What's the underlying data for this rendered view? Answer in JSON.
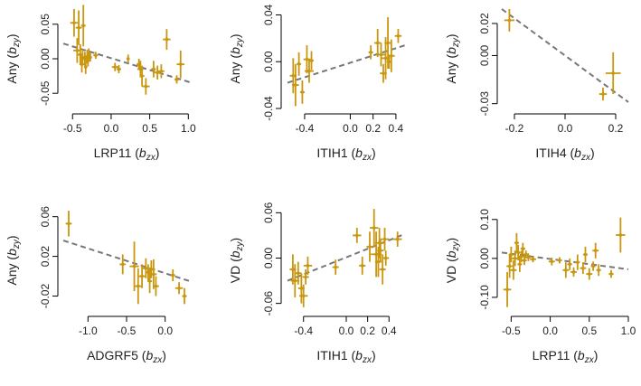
{
  "colors": {
    "point": "#C9970F",
    "fit": "#777777",
    "axis": "#000000"
  },
  "chart_data": [
    {
      "type": "scatter",
      "xlabel": {
        "gene": "LRP11",
        "sym": "b",
        "sub": "zx"
      },
      "ylabel": {
        "pre": "Any",
        "sym": "b",
        "sub": "zy"
      },
      "xlim": [
        -0.62,
        1.02
      ],
      "ylim": [
        -0.072,
        0.072
      ],
      "xticks": [
        -0.5,
        0.0,
        0.5,
        1.0
      ],
      "xtick_labels": [
        "-0.5",
        "0.0",
        "0.5",
        "1.0"
      ],
      "yticks": [
        -0.05,
        0.0,
        0.05
      ],
      "ytick_labels": [
        "-0.05",
        "0.00",
        "0.05"
      ],
      "fit": {
        "x": [
          -0.62,
          1.02
        ],
        "y": [
          0.022,
          -0.034
        ]
      },
      "points": [
        {
          "x": -0.48,
          "y": 0.052,
          "xe": 0.05,
          "ye": 0.02
        },
        {
          "x": -0.42,
          "y": 0.045,
          "xe": 0.04,
          "ye": 0.025
        },
        {
          "x": -0.36,
          "y": 0.048,
          "xe": 0.03,
          "ye": 0.03
        },
        {
          "x": -0.44,
          "y": 0.012,
          "xe": 0.05,
          "ye": 0.018
        },
        {
          "x": -0.4,
          "y": 0.006,
          "xe": 0.04,
          "ye": 0.015
        },
        {
          "x": -0.37,
          "y": 0.002,
          "xe": 0.03,
          "ye": 0.012
        },
        {
          "x": -0.34,
          "y": 0.0,
          "xe": 0.04,
          "ye": 0.01
        },
        {
          "x": -0.31,
          "y": 0.003,
          "xe": 0.03,
          "ye": 0.01
        },
        {
          "x": -0.29,
          "y": 0.007,
          "xe": 0.03,
          "ye": 0.008
        },
        {
          "x": -0.27,
          "y": 0.002,
          "xe": 0.02,
          "ye": 0.006
        },
        {
          "x": -0.38,
          "y": -0.008,
          "xe": 0.03,
          "ye": 0.012
        },
        {
          "x": -0.33,
          "y": -0.012,
          "xe": 0.02,
          "ye": 0.01
        },
        {
          "x": -0.3,
          "y": -0.003,
          "xe": 0.02,
          "ye": 0.008
        },
        {
          "x": -0.2,
          "y": 0.005,
          "xe": 0.03,
          "ye": 0.005
        },
        {
          "x": 0.05,
          "y": -0.012,
          "xe": 0.04,
          "ye": 0.006
        },
        {
          "x": 0.1,
          "y": -0.015,
          "xe": 0.03,
          "ye": 0.006
        },
        {
          "x": 0.22,
          "y": 0.0,
          "xe": 0.02,
          "ye": 0.006
        },
        {
          "x": 0.38,
          "y": -0.015,
          "xe": 0.04,
          "ye": 0.012
        },
        {
          "x": 0.4,
          "y": -0.025,
          "xe": 0.03,
          "ye": 0.015
        },
        {
          "x": 0.45,
          "y": -0.04,
          "xe": 0.05,
          "ye": 0.012
        },
        {
          "x": 0.36,
          "y": -0.008,
          "xe": 0.03,
          "ye": 0.008
        },
        {
          "x": 0.55,
          "y": -0.015,
          "xe": 0.03,
          "ye": 0.012
        },
        {
          "x": 0.6,
          "y": -0.02,
          "xe": 0.04,
          "ye": 0.01
        },
        {
          "x": 0.72,
          "y": 0.028,
          "xe": 0.05,
          "ye": 0.015
        },
        {
          "x": 0.65,
          "y": -0.018,
          "xe": 0.04,
          "ye": 0.01
        },
        {
          "x": 0.85,
          "y": -0.03,
          "xe": 0.03,
          "ye": 0.006
        },
        {
          "x": 0.9,
          "y": -0.008,
          "xe": 0.05,
          "ye": 0.02
        }
      ]
    },
    {
      "type": "scatter",
      "xlabel": {
        "gene": "ITIH1",
        "sym": "b",
        "sub": "zx"
      },
      "ylabel": {
        "pre": "Any",
        "sym": "b",
        "sub": "zy"
      },
      "xlim": [
        -0.55,
        0.48
      ],
      "ylim": [
        -0.04,
        0.045
      ],
      "xticks": [
        -0.4,
        0.0,
        0.2,
        0.4
      ],
      "xtick_labels": [
        "-0.4",
        "0.0",
        "0.2",
        "0.4"
      ],
      "yticks": [
        -0.04,
        0.0,
        0.04
      ],
      "ytick_labels": [
        "-0.04",
        "0.00",
        "0.04"
      ],
      "fit": {
        "x": [
          -0.55,
          0.48
        ],
        "y": [
          -0.018,
          0.014
        ]
      },
      "points": [
        {
          "x": -0.5,
          "y": -0.012,
          "xe": 0.03,
          "ye": 0.015
        },
        {
          "x": -0.48,
          "y": -0.02,
          "xe": 0.03,
          "ye": 0.018
        },
        {
          "x": -0.45,
          "y": -0.002,
          "xe": 0.02,
          "ye": 0.01
        },
        {
          "x": -0.42,
          "y": -0.026,
          "xe": 0.02,
          "ye": 0.01
        },
        {
          "x": -0.38,
          "y": 0.002,
          "xe": 0.03,
          "ye": 0.012
        },
        {
          "x": -0.36,
          "y": -0.008,
          "xe": 0.04,
          "ye": 0.01
        },
        {
          "x": -0.34,
          "y": 0.001,
          "xe": 0.02,
          "ye": 0.008
        },
        {
          "x": 0.18,
          "y": 0.008,
          "xe": 0.02,
          "ye": 0.006
        },
        {
          "x": 0.24,
          "y": 0.016,
          "xe": 0.03,
          "ye": 0.012
        },
        {
          "x": 0.27,
          "y": 0.006,
          "xe": 0.04,
          "ye": 0.01
        },
        {
          "x": 0.29,
          "y": -0.01,
          "xe": 0.03,
          "ye": 0.008
        },
        {
          "x": 0.31,
          "y": 0.003,
          "xe": 0.04,
          "ye": 0.018
        },
        {
          "x": 0.33,
          "y": 0.016,
          "xe": 0.03,
          "ye": 0.022
        },
        {
          "x": 0.34,
          "y": 0.0,
          "xe": 0.02,
          "ye": 0.006
        },
        {
          "x": 0.36,
          "y": 0.005,
          "xe": 0.03,
          "ye": 0.014
        },
        {
          "x": 0.42,
          "y": 0.022,
          "xe": 0.03,
          "ye": 0.006
        }
      ]
    },
    {
      "type": "scatter",
      "xlabel": {
        "gene": "ITIH4",
        "sym": "b",
        "sub": "zx"
      },
      "ylabel": {
        "pre": "Any",
        "sym": "b",
        "sub": "zy"
      },
      "xlim": [
        -0.25,
        0.25
      ],
      "ylim": [
        -0.033,
        0.029
      ],
      "xticks": [
        -0.2,
        0.0,
        0.2
      ],
      "xtick_labels": [
        "-0.2",
        "0.0",
        "0.2"
      ],
      "yticks": [
        -0.03,
        0.0,
        0.02
      ],
      "ytick_labels": [
        "-0.03",
        "0.00",
        "0.02"
      ],
      "fit": {
        "x": [
          -0.25,
          0.25
        ],
        "y": [
          0.029,
          -0.029
        ]
      },
      "points": [
        {
          "x": -0.22,
          "y": 0.022,
          "xe": 0.02,
          "ye": 0.007
        },
        {
          "x": 0.15,
          "y": -0.024,
          "xe": 0.015,
          "ye": 0.004
        },
        {
          "x": 0.19,
          "y": -0.011,
          "xe": 0.03,
          "ye": 0.013
        }
      ]
    },
    {
      "type": "scatter",
      "xlabel": {
        "gene": "ADGRF5",
        "sym": "b",
        "sub": "zx"
      },
      "ylabel": {
        "pre": "Any",
        "sym": "b",
        "sub": "zy"
      },
      "xlim": [
        -1.32,
        0.32
      ],
      "ylim": [
        -0.035,
        0.067
      ],
      "xticks": [
        -1.0,
        -0.5,
        0.0
      ],
      "xtick_labels": [
        "-1.0",
        "-0.5",
        "0.0"
      ],
      "yticks": [
        -0.02,
        0.02,
        0.06
      ],
      "ytick_labels": [
        "-0.02",
        "0.02",
        "0.06"
      ],
      "fit": {
        "x": [
          -1.32,
          0.32
        ],
        "y": [
          0.036,
          -0.005
        ]
      },
      "points": [
        {
          "x": -1.25,
          "y": 0.053,
          "xe": 0.04,
          "ye": 0.013
        },
        {
          "x": -0.55,
          "y": 0.012,
          "xe": 0.04,
          "ye": 0.01
        },
        {
          "x": -0.4,
          "y": 0.01,
          "xe": 0.06,
          "ye": 0.025
        },
        {
          "x": -0.35,
          "y": -0.01,
          "xe": 0.05,
          "ye": 0.018
        },
        {
          "x": -0.3,
          "y": 0.0,
          "xe": 0.04,
          "ye": 0.012
        },
        {
          "x": -0.25,
          "y": 0.008,
          "xe": 0.04,
          "ye": 0.01
        },
        {
          "x": -0.22,
          "y": 0.004,
          "xe": 0.03,
          "ye": 0.008
        },
        {
          "x": -0.2,
          "y": -0.005,
          "xe": 0.03,
          "ye": 0.012
        },
        {
          "x": -0.18,
          "y": 0.007,
          "xe": 0.05,
          "ye": 0.009
        },
        {
          "x": -0.15,
          "y": 0.002,
          "xe": 0.04,
          "ye": 0.015
        },
        {
          "x": -0.12,
          "y": -0.01,
          "xe": 0.04,
          "ye": 0.01
        },
        {
          "x": 0.1,
          "y": 0.001,
          "xe": 0.03,
          "ye": 0.006
        },
        {
          "x": 0.18,
          "y": -0.012,
          "xe": 0.05,
          "ye": 0.006
        },
        {
          "x": 0.25,
          "y": -0.02,
          "xe": 0.03,
          "ye": 0.008
        }
      ]
    },
    {
      "type": "scatter",
      "xlabel": {
        "gene": "ITIH1",
        "sym": "b",
        "sub": "zx"
      },
      "ylabel": {
        "pre": "VD",
        "sym": "b",
        "sub": "zy"
      },
      "xlim": [
        -0.55,
        0.55
      ],
      "ylim": [
        -0.07,
        0.064
      ],
      "xticks": [
        -0.4,
        0.0,
        0.2,
        0.4
      ],
      "xtick_labels": [
        "-0.4",
        "0.0",
        "0.2",
        "0.4"
      ],
      "yticks": [
        -0.06,
        0.0,
        0.06
      ],
      "ytick_labels": [
        "-0.06",
        "0.00",
        "0.06"
      ],
      "fit": {
        "x": [
          -0.55,
          0.55
        ],
        "y": [
          -0.03,
          0.032
        ]
      },
      "points": [
        {
          "x": -0.5,
          "y": -0.015,
          "xe": 0.03,
          "ye": 0.02
        },
        {
          "x": -0.48,
          "y": -0.03,
          "xe": 0.04,
          "ye": 0.022
        },
        {
          "x": -0.45,
          "y": -0.02,
          "xe": 0.03,
          "ye": 0.015
        },
        {
          "x": -0.42,
          "y": -0.04,
          "xe": 0.03,
          "ye": 0.02
        },
        {
          "x": -0.4,
          "y": -0.05,
          "xe": 0.04,
          "ye": 0.015
        },
        {
          "x": -0.38,
          "y": -0.025,
          "xe": 0.03,
          "ye": 0.01
        },
        {
          "x": -0.36,
          "y": -0.01,
          "xe": 0.04,
          "ye": 0.012
        },
        {
          "x": -0.1,
          "y": -0.012,
          "xe": 0.03,
          "ye": 0.01
        },
        {
          "x": 0.1,
          "y": 0.03,
          "xe": 0.04,
          "ye": 0.01
        },
        {
          "x": 0.15,
          "y": -0.01,
          "xe": 0.03,
          "ye": 0.012
        },
        {
          "x": 0.22,
          "y": 0.015,
          "xe": 0.03,
          "ye": 0.02
        },
        {
          "x": 0.26,
          "y": 0.04,
          "xe": 0.04,
          "ye": 0.025
        },
        {
          "x": 0.28,
          "y": 0.005,
          "xe": 0.05,
          "ye": 0.03
        },
        {
          "x": 0.3,
          "y": -0.005,
          "xe": 0.03,
          "ye": 0.02
        },
        {
          "x": 0.31,
          "y": 0.02,
          "xe": 0.04,
          "ye": 0.02
        },
        {
          "x": 0.32,
          "y": 0.01,
          "xe": 0.03,
          "ye": 0.015
        },
        {
          "x": 0.34,
          "y": -0.015,
          "xe": 0.03,
          "ye": 0.02
        },
        {
          "x": 0.36,
          "y": 0.025,
          "xe": 0.04,
          "ye": 0.015
        },
        {
          "x": 0.37,
          "y": 0.0,
          "xe": 0.03,
          "ye": 0.01
        },
        {
          "x": 0.48,
          "y": 0.025,
          "xe": 0.04,
          "ye": 0.01
        }
      ]
    },
    {
      "type": "scatter",
      "xlabel": {
        "gene": "LRP11",
        "sym": "b",
        "sub": "zx"
      },
      "ylabel": {
        "pre": "VD",
        "sym": "b",
        "sub": "zy"
      },
      "xlim": [
        -0.62,
        1.0
      ],
      "ylim": [
        -0.135,
        0.125
      ],
      "xticks": [
        -0.5,
        0.0,
        0.5,
        1.0
      ],
      "xtick_labels": [
        "-0.5",
        "0.0",
        "0.5",
        "1.0"
      ],
      "yticks": [
        -0.1,
        0.0,
        0.1
      ],
      "ytick_labels": [
        "-0.10",
        "0.00",
        "0.10"
      ],
      "fit": {
        "x": [
          -0.62,
          1.0
        ],
        "y": [
          0.015,
          -0.028
        ]
      },
      "points": [
        {
          "x": -0.55,
          "y": -0.08,
          "xe": 0.05,
          "ye": 0.045
        },
        {
          "x": -0.52,
          "y": -0.02,
          "xe": 0.04,
          "ye": 0.03
        },
        {
          "x": -0.5,
          "y": 0.01,
          "xe": 0.03,
          "ye": 0.02
        },
        {
          "x": -0.47,
          "y": -0.03,
          "xe": 0.04,
          "ye": 0.025
        },
        {
          "x": -0.45,
          "y": 0.0,
          "xe": 0.04,
          "ye": 0.02
        },
        {
          "x": -0.43,
          "y": 0.04,
          "xe": 0.03,
          "ye": 0.025
        },
        {
          "x": -0.41,
          "y": 0.015,
          "xe": 0.03,
          "ye": 0.02
        },
        {
          "x": -0.39,
          "y": -0.015,
          "xe": 0.03,
          "ye": 0.02
        },
        {
          "x": -0.37,
          "y": 0.005,
          "xe": 0.04,
          "ye": 0.015
        },
        {
          "x": -0.35,
          "y": 0.025,
          "xe": 0.03,
          "ye": 0.015
        },
        {
          "x": -0.33,
          "y": -0.005,
          "xe": 0.03,
          "ye": 0.012
        },
        {
          "x": -0.31,
          "y": 0.01,
          "xe": 0.03,
          "ye": 0.01
        },
        {
          "x": -0.28,
          "y": 0.003,
          "xe": 0.03,
          "ye": 0.01
        },
        {
          "x": -0.22,
          "y": -0.002,
          "xe": 0.04,
          "ye": 0.008
        },
        {
          "x": 0.02,
          "y": -0.008,
          "xe": 0.04,
          "ye": 0.01
        },
        {
          "x": 0.12,
          "y": -0.005,
          "xe": 0.03,
          "ye": 0.008
        },
        {
          "x": 0.2,
          "y": -0.03,
          "xe": 0.04,
          "ye": 0.02
        },
        {
          "x": 0.25,
          "y": -0.015,
          "xe": 0.03,
          "ye": 0.015
        },
        {
          "x": 0.3,
          "y": -0.035,
          "xe": 0.04,
          "ye": 0.012
        },
        {
          "x": 0.35,
          "y": -0.01,
          "xe": 0.03,
          "ye": 0.02
        },
        {
          "x": 0.42,
          "y": -0.025,
          "xe": 0.04,
          "ye": 0.015
        },
        {
          "x": 0.45,
          "y": 0.01,
          "xe": 0.03,
          "ye": 0.02
        },
        {
          "x": 0.5,
          "y": -0.04,
          "xe": 0.04,
          "ye": 0.015
        },
        {
          "x": 0.55,
          "y": -0.02,
          "xe": 0.03,
          "ye": 0.012
        },
        {
          "x": 0.58,
          "y": 0.02,
          "xe": 0.04,
          "ye": 0.02
        },
        {
          "x": 0.62,
          "y": -0.03,
          "xe": 0.03,
          "ye": 0.015
        },
        {
          "x": 0.78,
          "y": -0.04,
          "xe": 0.03,
          "ye": 0.01
        },
        {
          "x": 0.9,
          "y": 0.06,
          "xe": 0.06,
          "ye": 0.045
        }
      ]
    }
  ]
}
